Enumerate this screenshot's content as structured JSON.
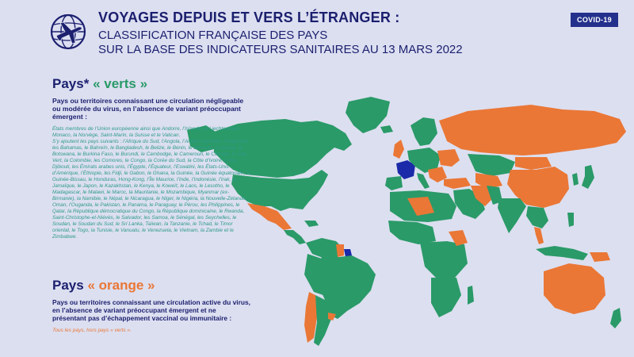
{
  "header": {
    "title": "VOYAGES DEPUIS ET VERS L’ÉTRANGER :",
    "subtitle_line1": "CLASSIFICATION FRANÇAISE DES PAYS",
    "subtitle_line2": "SUR LA BASE DES INDICATEURS SANITAIRES AU 13 MARS 2022",
    "badge": "COVID-19"
  },
  "green_section": {
    "head_prefix": "Pays*",
    "head_label": "« verts »",
    "description": "Pays ou territoires connaissant une circulation négligeable ou modérée du virus, en l’absence de variant préoccupant émergent :",
    "list_part1": "États membres de l’Union européenne ainsi que Andorre, l’Islande, le Liechtenstein, Monaco, la Norvège, Saint-Marin, la Suisse et le Vatican.",
    "list_part2": "S’y ajoutent les pays suivants : l’Afrique du Sud, l’Angola, l’Arabie Saoudite, l’Argentine, les Bahamas, le Bahreïn, le Bangladesh, le Belize, le Bénin, le Bhoutan, la Bolivie, le Botswana, le Burkina Faso, le Burundi, le Cambodge, le Cameroun, le Canada, le Cap Vert, la Colombie, les Comores, le Congo, la Corée du Sud, la Côte d’Ivoire, Cuba, Djibouti, les Émirats arabes unis, l’Égypte, l’Équateur, l’Eswatini, les États-Unis d’Amérique, l’Éthiopie, les Fidji, le Gabon, le Ghana, la Guinée, la Guinée équatoriale, la Guinée-Bissau, le Honduras, Hong-Kong, l’Île Maurice, l’Inde, l’Indonésie, l’Irak, la Jamaïque, le Japon, le Kazakhstan, le Kenya, le Koweït, le Laos, le Lesotho, le Madagascar, le Malawi, le Maroc, la Mauritanie, le Mozambique, Myanmar (ex-Birmanie), la Namibie, le Népal, le Nicaragua, le Niger, le Nigéria, la Nouvelle-Zélande, Oman, l’Ouganda, le Pakistan, le Panama, le Paraguay, le Pérou, les Philippines, le Qatar, la République démocratique du Congo, la République dominicaine, le Rwanda, Saint-Christophe-et-Niévès, le Salvador, les Samoa, le Sénégal, les Seychelles, le Soudan, le Soudan du Sud, le Sri Lanka, Taïwan, la Tanzanie, le Tchad, le Timor oriental, le Togo, la Tunisie, le Vanuatu, le Venezuela, le Vietnam, la Zambie et le Zimbabwe."
  },
  "orange_section": {
    "head_prefix": "Pays",
    "head_label": "« orange »",
    "description": "Pays ou territoires connaissant une circulation active du virus, en l’absence de variant préoccupant émergent et ne présentant pas d’échappement vaccinal ou immunitaire :",
    "note": "Tous les pays, hors pays « verts »."
  },
  "colors": {
    "background": "#dcdff0",
    "navy": "#1b1f6e",
    "green": "#2a9a68",
    "orange": "#ea7736",
    "france": "#1a2aa8"
  },
  "map": {
    "legend_categories": [
      "verts",
      "orange"
    ],
    "icon": "airplane-globe-icon"
  }
}
